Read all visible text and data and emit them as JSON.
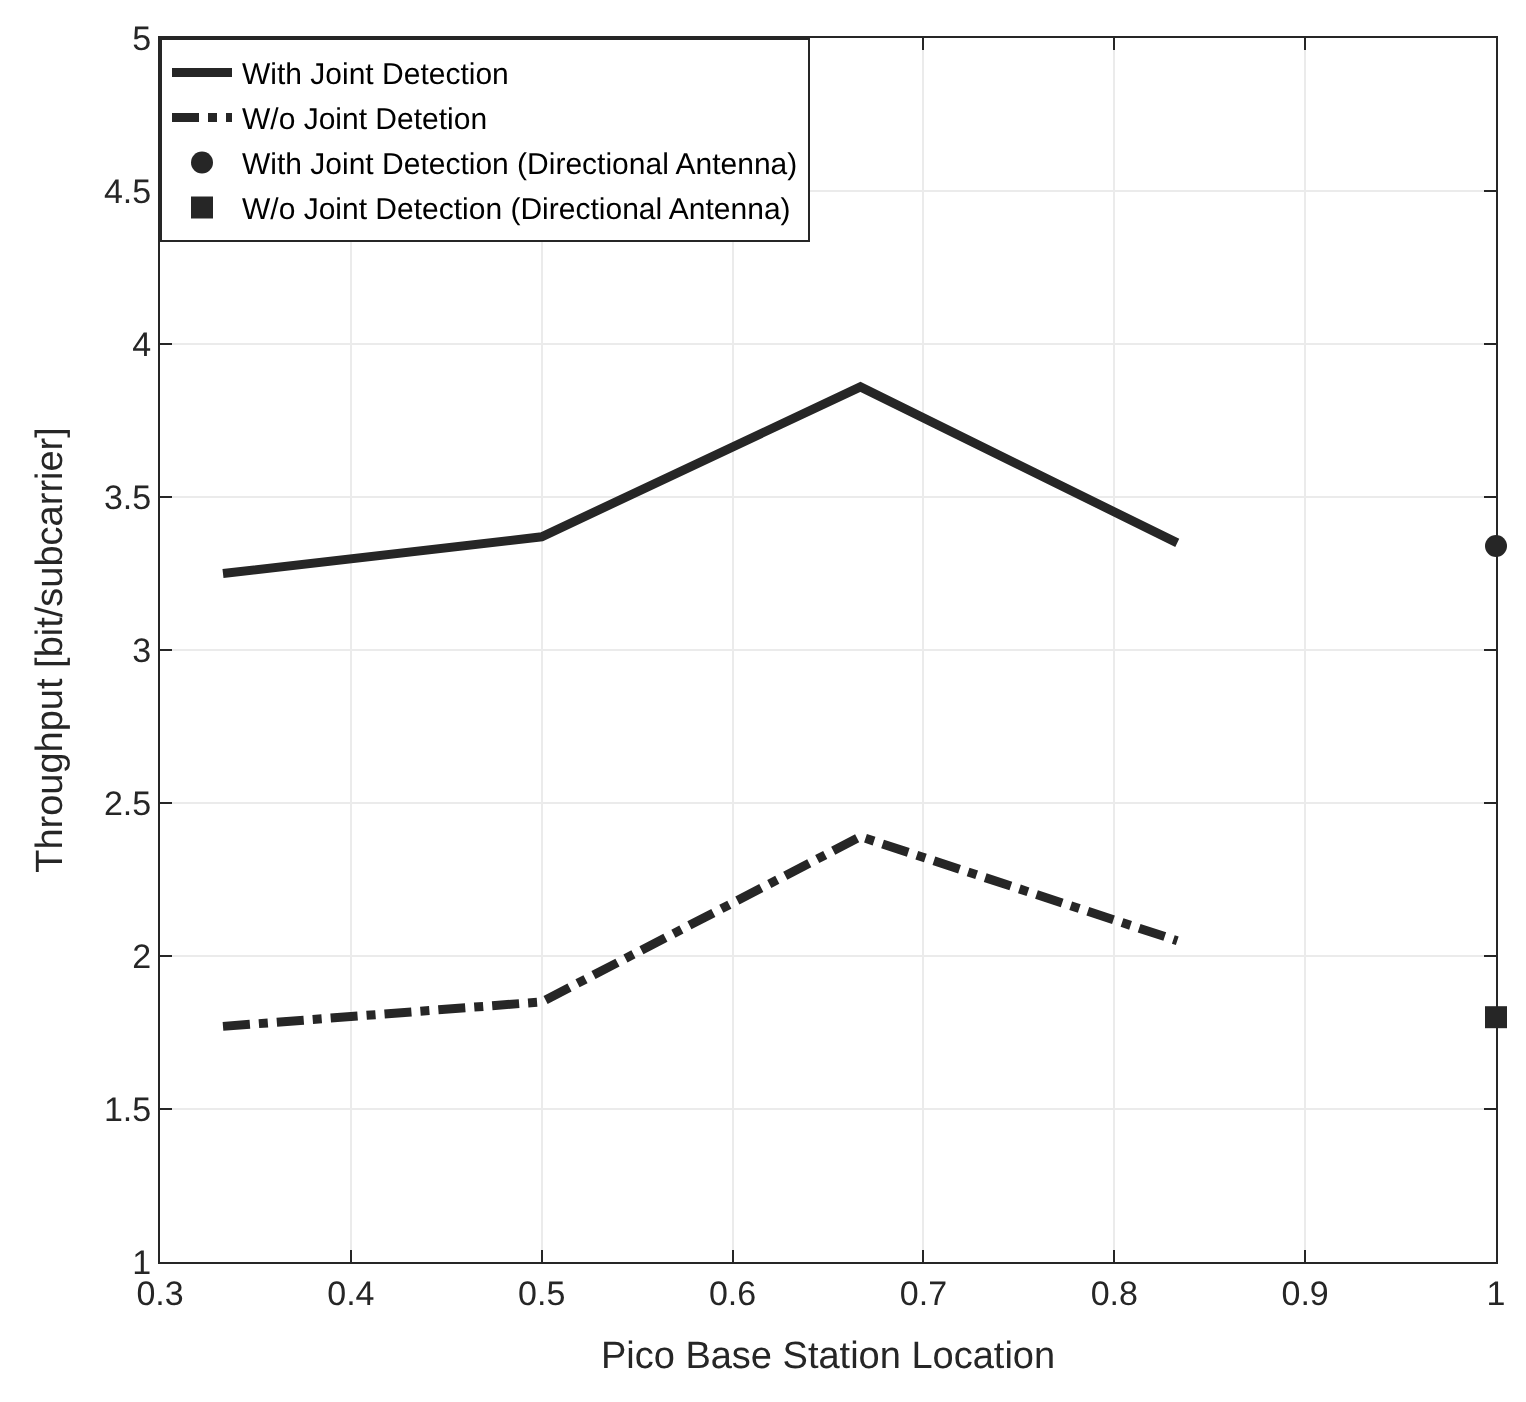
{
  "chart_data": {
    "type": "line",
    "xlabel": "Pico Base Station Location",
    "ylabel": "Throughput [bit/subcarrier]",
    "xlim": [
      0.3,
      1
    ],
    "xticks": [
      0.3,
      0.4,
      0.5,
      0.6,
      0.7,
      0.8,
      0.9,
      1
    ],
    "ylim": [
      1,
      5
    ],
    "yticks": [
      1,
      1.5,
      2,
      2.5,
      3,
      3.5,
      4,
      4.5,
      5
    ],
    "grid": true,
    "legend": "top left",
    "series": [
      {
        "name": "With Joint Detection",
        "color": "#262626",
        "line_style": "solid",
        "x": [
          0.333,
          0.5,
          0.667,
          0.833
        ],
        "values": [
          3.25,
          3.37,
          3.86,
          3.35
        ]
      },
      {
        "name": "W/o Joint Detetion",
        "color": "#262626",
        "line_style": "dashed",
        "x": [
          0.333,
          0.5,
          0.667,
          0.833
        ],
        "values": [
          1.77,
          1.85,
          2.39,
          2.05
        ]
      },
      {
        "name": "With Joint Detection (Directional Antenna)",
        "type": "scatter",
        "color": "#262626",
        "marker": "circle",
        "x": [
          1
        ],
        "values": [
          3.34
        ]
      },
      {
        "name": "W/o Joint Detection (Directional Antenna)",
        "type": "scatter",
        "color": "#262626",
        "marker": "square",
        "x": [
          1
        ],
        "values": [
          1.8
        ]
      }
    ]
  }
}
